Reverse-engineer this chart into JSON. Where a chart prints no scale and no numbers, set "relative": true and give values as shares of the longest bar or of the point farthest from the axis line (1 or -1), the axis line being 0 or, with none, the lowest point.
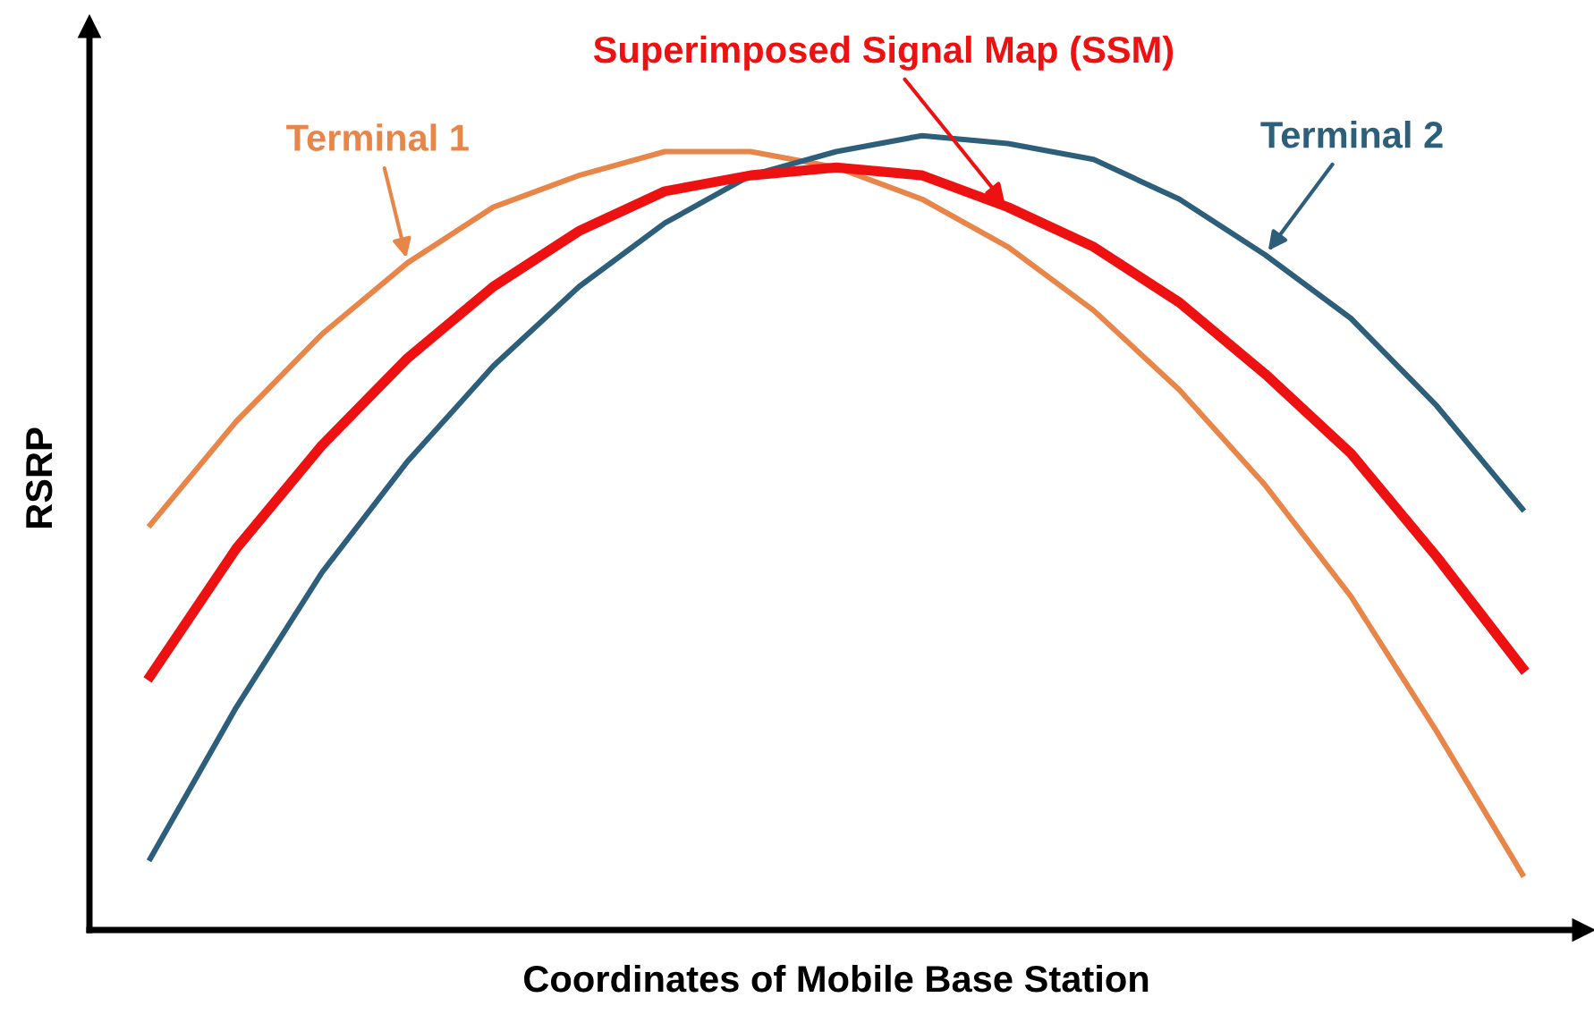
{
  "chart_data": {
    "type": "line",
    "relative": true,
    "xlabel": "Coordinates of Mobile Base Station",
    "ylabel": "RSRP",
    "categories": [
      null,
      null,
      null,
      null,
      null,
      null,
      null,
      null,
      null,
      null,
      null,
      null,
      null,
      null,
      null,
      null,
      null
    ],
    "series": [
      {
        "name": "Terminal 1",
        "color": "#e8864a",
        "values": [
          0.51,
          0.64,
          0.75,
          0.84,
          0.91,
          0.95,
          0.98,
          0.98,
          0.96,
          0.92,
          0.86,
          0.78,
          0.68,
          0.56,
          0.42,
          0.25,
          0.07
        ]
      },
      {
        "name": "Terminal 2",
        "color": "#2e5f7a",
        "values": [
          0.09,
          0.28,
          0.45,
          0.59,
          0.71,
          0.81,
          0.89,
          0.95,
          0.98,
          1.0,
          0.99,
          0.97,
          0.92,
          0.85,
          0.77,
          0.66,
          0.53
        ]
      },
      {
        "name": "Superimposed Signal Map (SSM)",
        "color": "#ee1111",
        "values": [
          0.32,
          0.48,
          0.61,
          0.72,
          0.81,
          0.88,
          0.93,
          0.95,
          0.96,
          0.95,
          0.91,
          0.86,
          0.79,
          0.7,
          0.6,
          0.47,
          0.33
        ]
      }
    ],
    "legend": false,
    "marker": "none",
    "line_style": "solid"
  }
}
